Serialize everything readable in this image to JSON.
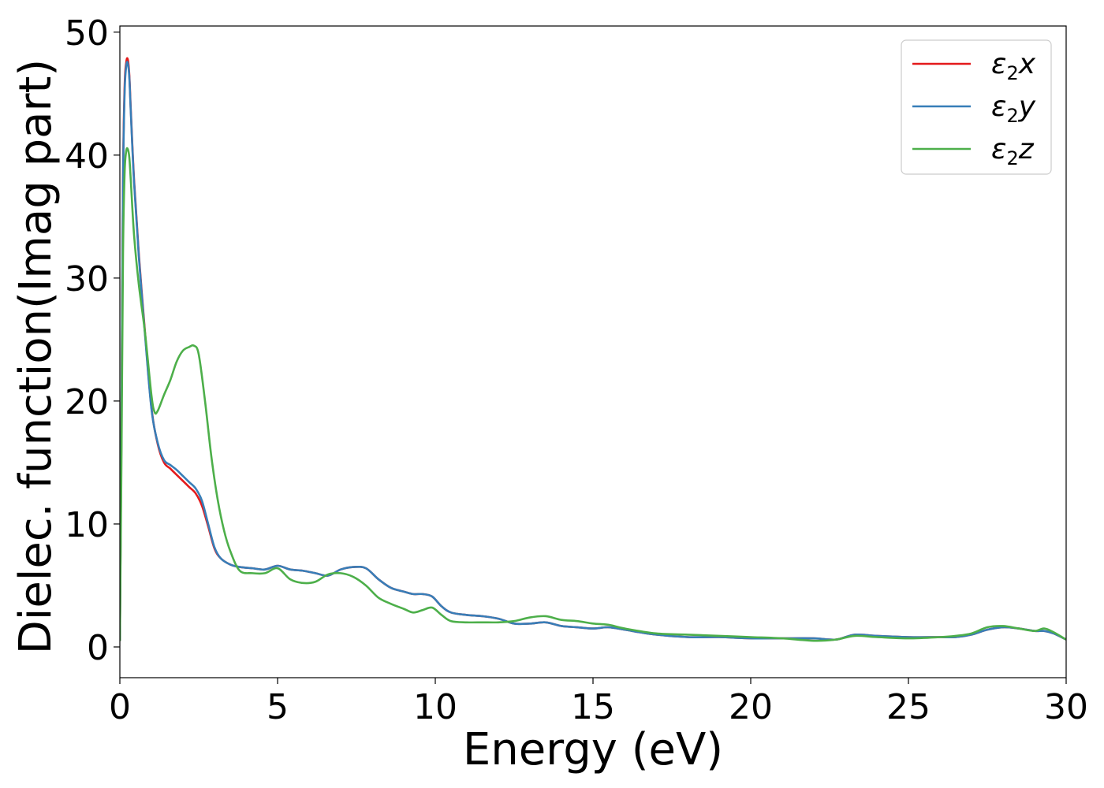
{
  "chart_data": {
    "type": "line",
    "xlabel": "Energy (eV)",
    "ylabel": "Dielec. function(Imag part)",
    "xlim": [
      0,
      30
    ],
    "ylim": [
      -2.5,
      50.5
    ],
    "xticks": [
      0,
      5,
      10,
      15,
      20,
      25,
      30
    ],
    "yticks": [
      0,
      10,
      20,
      30,
      40,
      50
    ],
    "grid": false,
    "legend_position": "top-right",
    "series": [
      {
        "name": "ε₂x",
        "legend": {
          "base": "ε",
          "sub": "2",
          "var": "x"
        },
        "color": "#e41a1c",
        "x": [
          0,
          0.05,
          0.1,
          0.15,
          0.2,
          0.25,
          0.3,
          0.35,
          0.45,
          0.6,
          0.8,
          1.0,
          1.2,
          1.4,
          1.6,
          1.8,
          2.0,
          2.2,
          2.4,
          2.6,
          2.8,
          3.0,
          3.2,
          3.5,
          3.8,
          4.2,
          4.6,
          5.0,
          5.4,
          5.8,
          6.2,
          6.6,
          7.0,
          7.4,
          7.8,
          8.2,
          8.6,
          9.0,
          9.3,
          9.6,
          9.9,
          10.2,
          10.5,
          11.0,
          11.5,
          12.0,
          12.5,
          13.0,
          13.5,
          14.0,
          14.5,
          15.0,
          15.5,
          16.0,
          17.0,
          18.0,
          19.0,
          20.0,
          21.0,
          22.0,
          22.7,
          23.3,
          24.0,
          25.0,
          26.0,
          26.5,
          27.0,
          27.5,
          28.0,
          28.5,
          29.0,
          29.3,
          29.6,
          30.0
        ],
        "y": [
          0.5,
          18,
          38,
          45.5,
          47.5,
          47.8,
          46.5,
          43.5,
          38,
          32,
          25.5,
          19.5,
          16.5,
          15.0,
          14.5,
          14.0,
          13.5,
          13.0,
          12.5,
          11.5,
          9.8,
          8.0,
          7.2,
          6.7,
          6.5,
          6.4,
          6.3,
          6.6,
          6.3,
          6.2,
          6.0,
          5.8,
          6.3,
          6.5,
          6.4,
          5.5,
          4.8,
          4.5,
          4.3,
          4.3,
          4.1,
          3.3,
          2.8,
          2.6,
          2.5,
          2.3,
          1.9,
          1.9,
          2.0,
          1.7,
          1.6,
          1.5,
          1.6,
          1.4,
          1.0,
          0.8,
          0.8,
          0.7,
          0.7,
          0.7,
          0.6,
          1.0,
          0.9,
          0.8,
          0.8,
          0.8,
          1.0,
          1.4,
          1.6,
          1.5,
          1.3,
          1.3,
          1.1,
          0.6
        ]
      },
      {
        "name": "ε₂y",
        "legend": {
          "base": "ε",
          "sub": "2",
          "var": "y"
        },
        "color": "#377eb8",
        "x": [
          0,
          0.05,
          0.1,
          0.15,
          0.2,
          0.25,
          0.3,
          0.35,
          0.45,
          0.6,
          0.8,
          1.0,
          1.2,
          1.4,
          1.6,
          1.8,
          2.0,
          2.2,
          2.4,
          2.6,
          2.8,
          3.0,
          3.2,
          3.5,
          3.8,
          4.2,
          4.6,
          5.0,
          5.4,
          5.8,
          6.2,
          6.6,
          7.0,
          7.4,
          7.8,
          8.2,
          8.6,
          9.0,
          9.3,
          9.6,
          9.9,
          10.2,
          10.5,
          11.0,
          11.5,
          12.0,
          12.5,
          13.0,
          13.5,
          14.0,
          14.5,
          15.0,
          15.5,
          16.0,
          17.0,
          18.0,
          19.0,
          20.0,
          21.0,
          22.0,
          22.7,
          23.3,
          24.0,
          25.0,
          26.0,
          26.5,
          27.0,
          27.5,
          28.0,
          28.5,
          29.0,
          29.3,
          29.6,
          30.0
        ],
        "y": [
          0.5,
          18,
          37.5,
          45,
          47.2,
          47.5,
          46.3,
          43.3,
          37.8,
          31.8,
          25.3,
          19.4,
          16.6,
          15.2,
          14.8,
          14.4,
          13.9,
          13.4,
          12.9,
          11.9,
          10.0,
          8.1,
          7.2,
          6.7,
          6.5,
          6.4,
          6.3,
          6.6,
          6.3,
          6.2,
          6.0,
          5.8,
          6.3,
          6.5,
          6.4,
          5.5,
          4.8,
          4.5,
          4.3,
          4.3,
          4.1,
          3.3,
          2.8,
          2.6,
          2.5,
          2.3,
          1.9,
          1.9,
          2.0,
          1.7,
          1.6,
          1.5,
          1.6,
          1.4,
          1.0,
          0.8,
          0.8,
          0.7,
          0.7,
          0.7,
          0.6,
          1.0,
          0.9,
          0.8,
          0.8,
          0.8,
          1.0,
          1.4,
          1.6,
          1.5,
          1.3,
          1.3,
          1.1,
          0.6
        ]
      },
      {
        "name": "ε₂z",
        "legend": {
          "base": "ε",
          "sub": "2",
          "var": "z"
        },
        "color": "#4daf4a",
        "x": [
          0,
          0.05,
          0.1,
          0.15,
          0.2,
          0.25,
          0.3,
          0.35,
          0.45,
          0.6,
          0.8,
          1.0,
          1.1,
          1.2,
          1.4,
          1.6,
          1.8,
          2.0,
          2.2,
          2.35,
          2.5,
          2.7,
          2.9,
          3.1,
          3.3,
          3.5,
          3.8,
          4.2,
          4.6,
          5.0,
          5.4,
          5.8,
          6.2,
          6.6,
          7.0,
          7.4,
          7.8,
          8.2,
          8.6,
          9.0,
          9.3,
          9.6,
          9.9,
          10.2,
          10.5,
          11.0,
          11.5,
          12.0,
          12.5,
          13.0,
          13.5,
          14.0,
          14.5,
          15.0,
          15.5,
          16.0,
          17.0,
          18.0,
          19.0,
          20.0,
          21.0,
          22.0,
          22.7,
          23.3,
          24.0,
          25.0,
          26.0,
          26.5,
          27.0,
          27.5,
          28.0,
          28.5,
          29.0,
          29.3,
          29.6,
          30.0
        ],
        "y": [
          0.5,
          15,
          32,
          38.5,
          40.3,
          40.5,
          39.8,
          37.8,
          33.5,
          29.5,
          25.5,
          20.5,
          19.1,
          19.2,
          20.5,
          21.7,
          23.2,
          24.1,
          24.4,
          24.5,
          23.8,
          20.0,
          15.5,
          12.0,
          9.5,
          7.8,
          6.2,
          6.0,
          6.0,
          6.4,
          5.5,
          5.2,
          5.3,
          5.9,
          6.0,
          5.7,
          5.0,
          4.0,
          3.5,
          3.1,
          2.8,
          3.0,
          3.2,
          2.6,
          2.1,
          2.0,
          2.0,
          2.0,
          2.1,
          2.4,
          2.5,
          2.2,
          2.1,
          1.9,
          1.8,
          1.5,
          1.1,
          1.0,
          0.9,
          0.8,
          0.7,
          0.5,
          0.6,
          0.9,
          0.8,
          0.7,
          0.8,
          0.9,
          1.1,
          1.6,
          1.7,
          1.5,
          1.3,
          1.5,
          1.2,
          0.6
        ]
      }
    ]
  }
}
